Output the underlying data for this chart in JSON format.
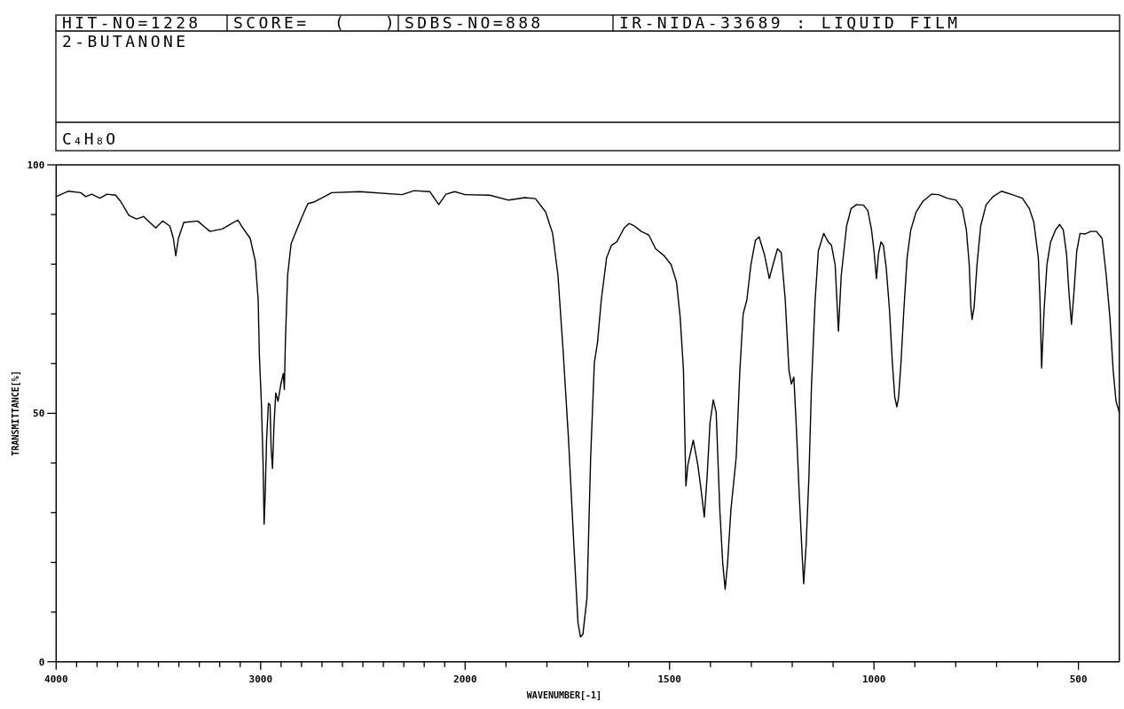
{
  "chart_data": [
    {
      "type": "line",
      "title": "2-BUTANONE",
      "annotations": [
        "HIT-NO=1228",
        "SCORE=  (   )",
        "SDBS-NO=888",
        "IR-NIDA-33689 : LIQUID FILM",
        "C₄H₈O"
      ],
      "ylabel": "TRANSMITTANCE[%]",
      "x": [
        4000,
        3940,
        3880,
        3855,
        3826,
        3786,
        3752,
        3709,
        3684,
        3644,
        3607,
        3573,
        3513,
        3479,
        3444,
        3427,
        3415,
        3402,
        3376,
        3308,
        3248,
        3188,
        3145,
        3111,
        3094,
        3051,
        3026,
        3012,
        3006,
        2996,
        2988,
        2983,
        2978,
        2971,
        2962,
        2954,
        2949,
        2942,
        2935,
        2926,
        2915,
        2901,
        2889,
        2884,
        2879,
        2868,
        2851,
        2824,
        2795,
        2769,
        2740,
        2652,
        2515,
        2309,
        2249,
        2172,
        2129,
        2094,
        2051,
        2000
      ],
      "series": [
        {
          "color": "#000000",
          "line_style": "solid",
          "values": [
            93.6,
            94.7,
            94.4,
            93.6,
            94.1,
            93.3,
            94.1,
            93.9,
            92.6,
            89.8,
            89.1,
            89.6,
            87.3,
            88.7,
            87.7,
            85.2,
            81.7,
            85.2,
            88.4,
            88.7,
            86.6,
            87.1,
            88.1,
            88.9,
            87.7,
            85.2,
            80.6,
            72.8,
            61.5,
            51.7,
            39.7,
            27.7,
            33.3,
            44.6,
            52.0,
            51.7,
            43.2,
            38.9,
            47.4,
            54.1,
            52.4,
            55.9,
            58.0,
            54.8,
            64.4,
            77.8,
            84.1,
            86.9,
            89.8,
            92.2,
            92.5,
            94.4,
            94.6,
            94.0,
            94.8,
            94.6,
            92.0,
            94.1,
            94.6,
            94.0
          ]
        }
      ],
      "xlim": [
        4000,
        2000
      ],
      "ylim": [
        0,
        100
      ],
      "xticks": [
        4000,
        {
          "value": 3900,
          "label": null
        },
        {
          "value": 3800,
          "label": null
        },
        {
          "value": 3700,
          "label": null
        },
        {
          "value": 3600,
          "label": null
        },
        {
          "value": 3500,
          "label": null
        },
        {
          "value": 3400,
          "label": null
        },
        {
          "value": 3300,
          "label": null
        },
        {
          "value": 3200,
          "label": null
        },
        {
          "value": 3100,
          "label": null
        },
        3000,
        {
          "value": 2900,
          "label": null
        },
        {
          "value": 2800,
          "label": null
        },
        {
          "value": 2700,
          "label": null
        },
        {
          "value": 2600,
          "label": null
        },
        {
          "value": 2500,
          "label": null
        },
        {
          "value": 2400,
          "label": null
        },
        {
          "value": 2300,
          "label": null
        },
        {
          "value": 2200,
          "label": null
        },
        {
          "value": 2100,
          "label": null
        },
        2000
      ],
      "yticks": [
        0,
        {
          "value": 10,
          "label": null
        },
        {
          "value": 20,
          "label": null
        },
        {
          "value": 30,
          "label": null
        },
        {
          "value": 40,
          "label": null
        },
        50,
        {
          "value": 60,
          "label": null
        },
        {
          "value": 70,
          "label": null
        },
        {
          "value": 80,
          "label": null
        },
        {
          "value": 90,
          "label": null
        },
        100
      ]
    },
    {
      "type": "line",
      "xlabel": "WAVENUMBER[-1]",
      "x": [
        2000,
        1940,
        1893,
        1854,
        1828,
        1803,
        1786,
        1773,
        1760,
        1747,
        1734,
        1724,
        1718,
        1712,
        1702,
        1693,
        1684,
        1676,
        1667,
        1654,
        1642,
        1629,
        1611,
        1599,
        1586,
        1569,
        1551,
        1534,
        1513,
        1496,
        1483,
        1474,
        1466,
        1460,
        1455,
        1442,
        1431,
        1423,
        1415,
        1408,
        1401,
        1393,
        1386,
        1377,
        1370,
        1364,
        1358,
        1350,
        1337,
        1328,
        1320,
        1311,
        1301,
        1290,
        1281,
        1268,
        1256,
        1247,
        1236,
        1227,
        1217,
        1208,
        1202,
        1196,
        1190,
        1183,
        1176,
        1172,
        1166,
        1159,
        1153,
        1144,
        1136,
        1123,
        1112,
        1104,
        1095,
        1087,
        1080,
        1067,
        1056,
        1043,
        1026,
        1015,
        1006,
        1000,
        994,
        989,
        983,
        977,
        970,
        962,
        955,
        949,
        944,
        940,
        934,
        927,
        919,
        910,
        897,
        880,
        859,
        842,
        821,
        799,
        784,
        774,
        767,
        763,
        760,
        755,
        748,
        739,
        726,
        709,
        688,
        662,
        637,
        620,
        609,
        598,
        594,
        590,
        584,
        577,
        568,
        556,
        546,
        537,
        529,
        523,
        517,
        511,
        504,
        496,
        483,
        470,
        456,
        442,
        432,
        423,
        415,
        408,
        400
      ],
      "series": [
        {
          "color": "#000000",
          "line_style": "solid",
          "values": [
            94.0,
            93.9,
            92.9,
            93.4,
            93.2,
            90.5,
            86.2,
            77.8,
            62.2,
            44.6,
            23.4,
            7.9,
            5.0,
            5.5,
            12.8,
            41.1,
            60.1,
            64.4,
            72.8,
            81.3,
            83.8,
            84.5,
            87.3,
            88.2,
            87.7,
            86.6,
            85.9,
            83.1,
            81.7,
            79.9,
            76.4,
            69.3,
            58.7,
            35.4,
            39.7,
            44.6,
            39.7,
            34.7,
            29.1,
            37.5,
            48.1,
            52.7,
            50.2,
            30.5,
            19.9,
            14.6,
            19.9,
            30.5,
            41.1,
            58.7,
            70.0,
            72.8,
            79.9,
            84.8,
            85.5,
            82.0,
            77.1,
            79.9,
            83.1,
            82.4,
            72.8,
            58.7,
            55.9,
            57.3,
            47.4,
            34.0,
            22.0,
            15.7,
            23.4,
            37.5,
            55.2,
            72.8,
            82.7,
            86.2,
            84.5,
            83.8,
            79.9,
            66.5,
            77.8,
            87.7,
            91.2,
            92.0,
            91.9,
            90.8,
            86.9,
            82.7,
            77.1,
            82.0,
            84.5,
            83.8,
            79.2,
            70.7,
            60.1,
            53.1,
            51.3,
            53.1,
            60.1,
            70.7,
            81.3,
            86.9,
            90.5,
            92.7,
            94.1,
            94.0,
            93.3,
            92.9,
            91.2,
            86.9,
            79.9,
            71.4,
            68.9,
            71.4,
            79.9,
            87.7,
            91.9,
            93.6,
            94.7,
            94.0,
            93.3,
            91.2,
            88.4,
            81.3,
            72.8,
            59.1,
            70.7,
            79.9,
            84.5,
            86.9,
            88.0,
            86.9,
            82.0,
            74.2,
            67.9,
            74.2,
            82.7,
            86.2,
            86.1,
            86.6,
            86.6,
            85.2,
            77.8,
            69.3,
            58.7,
            52.4,
            50.2
          ]
        }
      ],
      "xlim": [
        2000,
        400
      ],
      "ylim": [
        0,
        100
      ],
      "tick_labels": "x",
      "xticks": [
        {
          "value": 1900,
          "label": null
        },
        {
          "value": 1800,
          "label": null
        },
        {
          "value": 1700,
          "label": null
        },
        {
          "value": 1600,
          "label": null
        },
        1500,
        {
          "value": 1400,
          "label": null
        },
        {
          "value": 1300,
          "label": null
        },
        {
          "value": 1200,
          "label": null
        },
        {
          "value": 1100,
          "label": null
        },
        1000,
        {
          "value": 900,
          "label": null
        },
        {
          "value": 800,
          "label": null
        },
        {
          "value": 700,
          "label": null
        },
        {
          "value": 600,
          "label": null
        },
        500
      ]
    }
  ]
}
